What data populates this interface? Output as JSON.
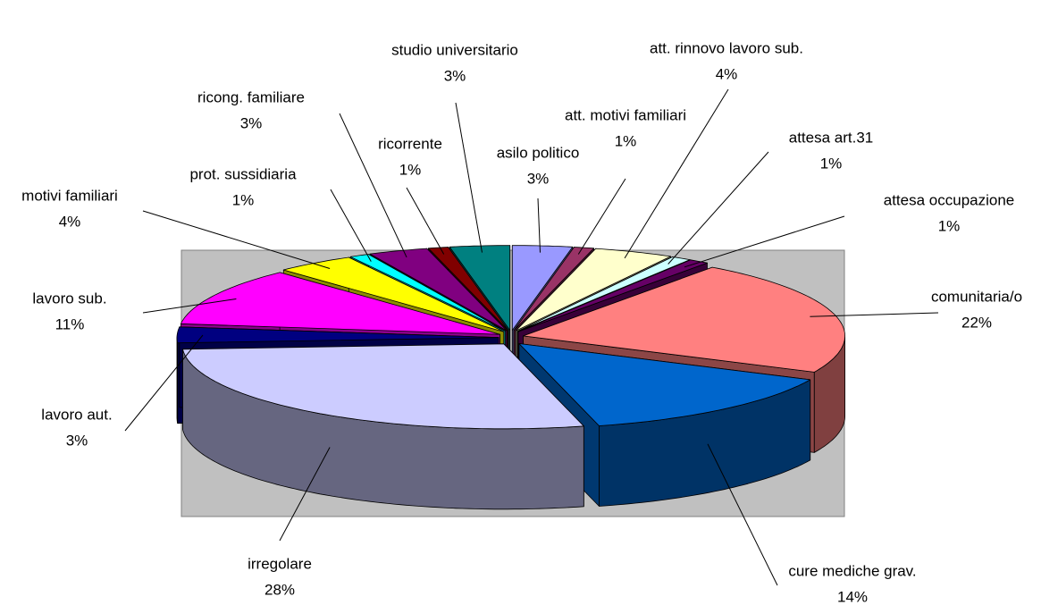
{
  "chart_data": {
    "type": "pie",
    "categories": [
      "asilo politico",
      "att. motivi familiari",
      "att. rinnovo lavoro sub.",
      "attesa art.31",
      "attesa occupazione",
      "comunitaria/o",
      "cure mediche grav.",
      "irregolare",
      "lavoro aut.",
      "lavoro sub.",
      "motivi familiari",
      "prot. sussidiaria",
      "ricong. familiare",
      "ricorrente",
      "studio universitario"
    ],
    "values": [
      3,
      1,
      4,
      1,
      1,
      22,
      14,
      28,
      3,
      11,
      4,
      1,
      3,
      1,
      3
    ],
    "value_labels": [
      "3%",
      "1%",
      "4%",
      "1%",
      "1%",
      "22%",
      "14%",
      "28%",
      "3%",
      "11%",
      "4%",
      "1%",
      "3%",
      "1%",
      "3%"
    ],
    "colors": [
      "#9999ff",
      "#993366",
      "#ffffcc",
      "#ccffff",
      "#660066",
      "#ff8080",
      "#0066cc",
      "#ccccff",
      "#000080",
      "#ff00ff",
      "#ffff00",
      "#00ffff",
      "#800080",
      "#800000",
      "#008080"
    ]
  }
}
